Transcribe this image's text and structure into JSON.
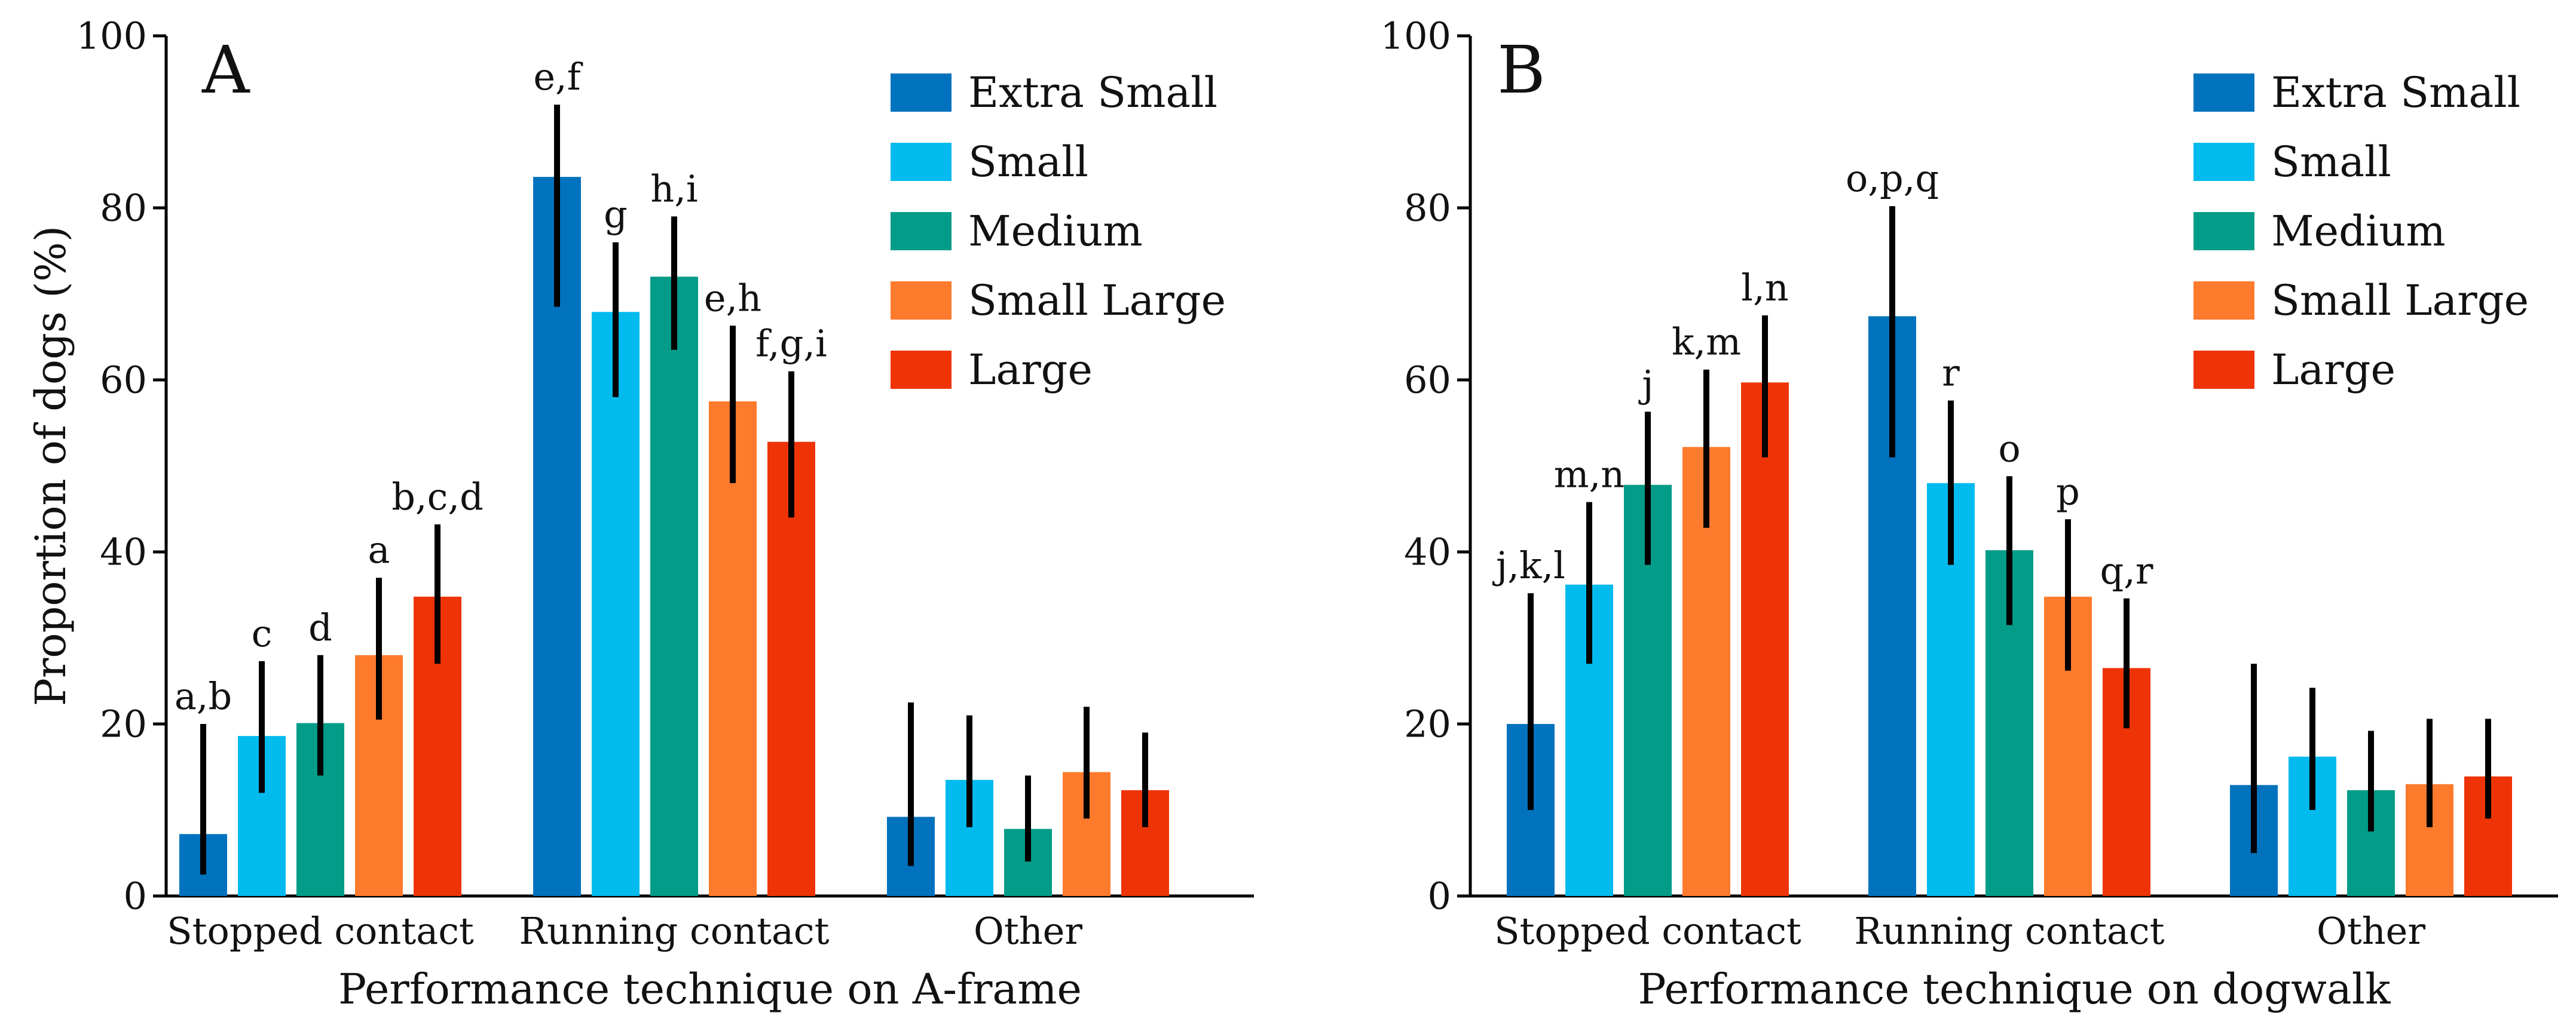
{
  "figure": {
    "colors": {
      "Extra Small": "#0172bd",
      "Small": "#02bbee",
      "Medium": "#029c88",
      "Small Large": "#fe7a2d",
      "Large": "#ee3407"
    },
    "error_bar_color": "#000000"
  },
  "chart_data": [
    {
      "type": "bar",
      "panel": "A",
      "xlabel": "Performance technique on A-frame",
      "ylabel": "Proportion of dogs (%)",
      "ylim": [
        0,
        100
      ],
      "yticks": [
        0,
        20,
        40,
        60,
        80,
        100
      ],
      "grid": false,
      "legend": "top-right",
      "categories": [
        "Stopped contact",
        "Running contact",
        "Other"
      ],
      "series": [
        {
          "name": "Extra Small",
          "values": [
            7.2,
            83.6,
            9.2
          ],
          "ci_low": [
            2.5,
            68.5,
            3.5
          ],
          "ci_high": [
            20.0,
            92.0,
            22.5
          ],
          "labels": [
            "a,b",
            "e,f",
            ""
          ]
        },
        {
          "name": "Small",
          "values": [
            18.6,
            67.9,
            13.5
          ],
          "ci_low": [
            12.0,
            58.0,
            8.0
          ],
          "ci_high": [
            27.3,
            76.0,
            21.0
          ],
          "labels": [
            "c",
            "g",
            ""
          ]
        },
        {
          "name": "Medium",
          "values": [
            20.1,
            72.0,
            7.8
          ],
          "ci_low": [
            14.0,
            63.5,
            4.0
          ],
          "ci_high": [
            28.0,
            79.0,
            14.0
          ],
          "labels": [
            "d",
            "h,i",
            ""
          ]
        },
        {
          "name": "Small Large",
          "values": [
            28.0,
            57.5,
            14.4
          ],
          "ci_low": [
            20.5,
            48.0,
            9.0
          ],
          "ci_high": [
            37.0,
            66.3,
            22.0
          ],
          "labels": [
            "a",
            "e,h",
            ""
          ]
        },
        {
          "name": "Large",
          "values": [
            34.8,
            52.8,
            12.3
          ],
          "ci_low": [
            27.0,
            44.0,
            8.0
          ],
          "ci_high": [
            43.2,
            61.0,
            19.0
          ],
          "labels": [
            "b,c,d",
            "f,g,i",
            ""
          ]
        }
      ]
    },
    {
      "type": "bar",
      "panel": "B",
      "xlabel": "Performance technique on dogwalk",
      "ylabel": "",
      "ylim": [
        0,
        100
      ],
      "yticks": [
        0,
        20,
        40,
        60,
        80,
        100
      ],
      "grid": false,
      "legend": "top-right",
      "categories": [
        "Stopped contact",
        "Running contact",
        "Other"
      ],
      "series": [
        {
          "name": "Extra Small",
          "values": [
            20.0,
            67.4,
            12.9
          ],
          "ci_low": [
            10.0,
            51.0,
            5.0
          ],
          "ci_high": [
            35.2,
            80.2,
            27.0
          ],
          "labels": [
            "j,k,l",
            "o,p,q",
            ""
          ]
        },
        {
          "name": "Small",
          "values": [
            36.2,
            48.0,
            16.2
          ],
          "ci_low": [
            27.0,
            38.5,
            10.0
          ],
          "ci_high": [
            45.8,
            57.6,
            24.2
          ],
          "labels": [
            "m,n",
            "r",
            ""
          ]
        },
        {
          "name": "Medium",
          "values": [
            47.8,
            40.2,
            12.3
          ],
          "ci_low": [
            38.5,
            31.5,
            7.5
          ],
          "ci_high": [
            56.3,
            48.8,
            19.2
          ],
          "labels": [
            "j",
            "o",
            ""
          ]
        },
        {
          "name": "Small Large",
          "values": [
            52.2,
            34.8,
            13.0
          ],
          "ci_low": [
            42.8,
            26.2,
            8.0
          ],
          "ci_high": [
            61.2,
            43.8,
            20.6
          ],
          "labels": [
            "k,m",
            "p",
            ""
          ]
        },
        {
          "name": "Large",
          "values": [
            59.7,
            26.5,
            13.9
          ],
          "ci_low": [
            51.0,
            19.5,
            9.0
          ],
          "ci_high": [
            67.5,
            34.6,
            20.6
          ],
          "labels": [
            "l,n",
            "q,r",
            ""
          ]
        }
      ]
    }
  ]
}
